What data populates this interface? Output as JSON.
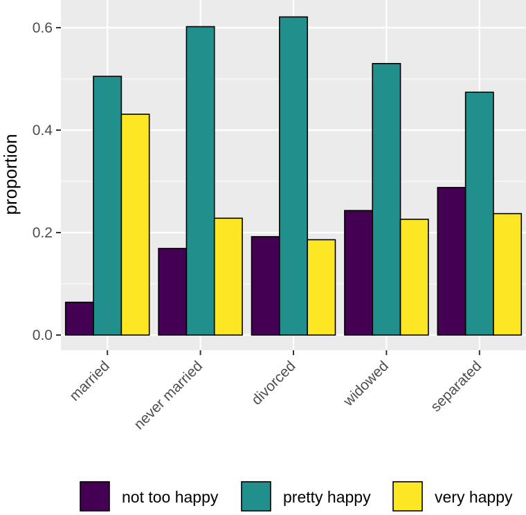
{
  "chart_data": {
    "type": "bar",
    "title": "",
    "xlabel": "",
    "ylabel": "proportion",
    "categories": [
      "married",
      "never married",
      "divorced",
      "widowed",
      "separated"
    ],
    "series": [
      {
        "name": "not too happy",
        "color": "#440154",
        "values": [
          0.064,
          0.169,
          0.192,
          0.243,
          0.288
        ]
      },
      {
        "name": "pretty happy",
        "color": "#21908C",
        "values": [
          0.505,
          0.602,
          0.621,
          0.53,
          0.474
        ]
      },
      {
        "name": "very happy",
        "color": "#FDE725",
        "values": [
          0.431,
          0.228,
          0.186,
          0.226,
          0.237
        ]
      }
    ],
    "y_ticks": [
      0,
      0.2,
      0.4,
      0.6
    ],
    "y_tick_labels": [
      "0.0",
      "0.2",
      "0.4",
      "0.6"
    ],
    "ylim": [
      0,
      0.62
    ],
    "grid": true,
    "legend_position": "bottom",
    "panel_background": "#EBEBEB"
  }
}
